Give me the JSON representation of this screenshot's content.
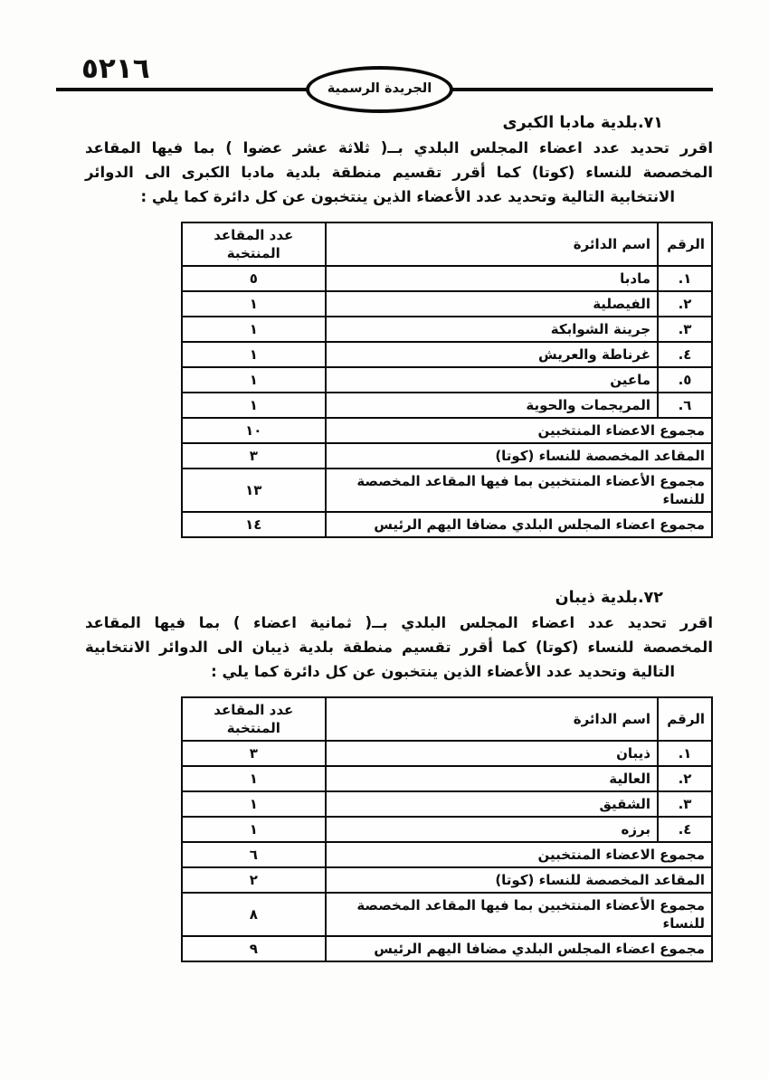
{
  "page": {
    "number": "٥٢١٦",
    "gazette_title": "الجريدة الرسمية"
  },
  "sections": [
    {
      "title": "٧١.بلدية مادبا الكبرى",
      "paragraph_lines": [
        "اقرر تحديد عدد اعضاء المجلس البلدي بــ( ثلاثة عشر عضوا   ) بما فيها المقاعد",
        "المخصصة للنساء (كوتا) كما أقرر تقسيم منطقة بلدية مادبا الكبرى الى الدوائر",
        "الانتخابية التالية وتحديد عدد الأعضاء الذين ينتخبون عن كل دائرة كما يلي :"
      ],
      "table": {
        "headers": {
          "num": "الرقم",
          "district": "اسم الدائرة",
          "seats": "عدد المقاعد المنتخبة"
        },
        "rows": [
          {
            "num": "١.",
            "district": "مادبا",
            "seats": "٥"
          },
          {
            "num": "٢.",
            "district": "الفيصلية",
            "seats": "١"
          },
          {
            "num": "٣.",
            "district": "جرينة الشوابكة",
            "seats": "١"
          },
          {
            "num": "٤.",
            "district": "غرناطة والعريش",
            "seats": "١"
          },
          {
            "num": "٥.",
            "district": "ماعين",
            "seats": "١"
          },
          {
            "num": "٦.",
            "district": "المريجمات والحوية",
            "seats": "١"
          }
        ],
        "summary_rows": [
          {
            "label": "مجموع الاعضاء المنتخبين",
            "value": "١٠"
          },
          {
            "label": "المقاعد المخصصة للنساء (كوتا)",
            "value": "٣"
          },
          {
            "label": "مجموع الأعضاء المنتخبين بما فيها المقاعد المخصصة للنساء",
            "value": "١٣"
          },
          {
            "label": "مجموع اعضاء المجلس البلدي مضافا اليهم الرئيس",
            "value": "١٤"
          }
        ]
      }
    },
    {
      "title": "٧٢.بلدية ذيبان",
      "paragraph_lines": [
        "اقرر تحديد عدد اعضاء المجلس البلدي بــ(  ثمانية اعضاء ) بما فيها المقاعد",
        "المخصصة للنساء (كوتا) كما أقرر تقسيم منطقة بلدية ذيبان الى الدوائر الانتخابية",
        "التالية وتحديد عدد الأعضاء الذين ينتخبون عن كل دائرة كما يلي :"
      ],
      "table": {
        "headers": {
          "num": "الرقم",
          "district": "اسم الدائرة",
          "seats": "عدد المقاعد المنتخبة"
        },
        "rows": [
          {
            "num": "١.",
            "district": "ذيبان",
            "seats": "٣"
          },
          {
            "num": "٢.",
            "district": "العالية",
            "seats": "١"
          },
          {
            "num": "٣.",
            "district": "الشقيق",
            "seats": "١"
          },
          {
            "num": "٤.",
            "district": "برزه",
            "seats": "١"
          }
        ],
        "summary_rows": [
          {
            "label": "مجموع الاعضاء المنتخبين",
            "value": "٦"
          },
          {
            "label": "المقاعد المخصصة للنساء (كوتا)",
            "value": "٢"
          },
          {
            "label": "مجموع الأعضاء المنتخبين بما فيها المقاعد المخصصة للنساء",
            "value": "٨"
          },
          {
            "label": "مجموع اعضاء المجلس البلدي مضافا اليهم الرئيس",
            "value": "٩"
          }
        ]
      }
    }
  ]
}
